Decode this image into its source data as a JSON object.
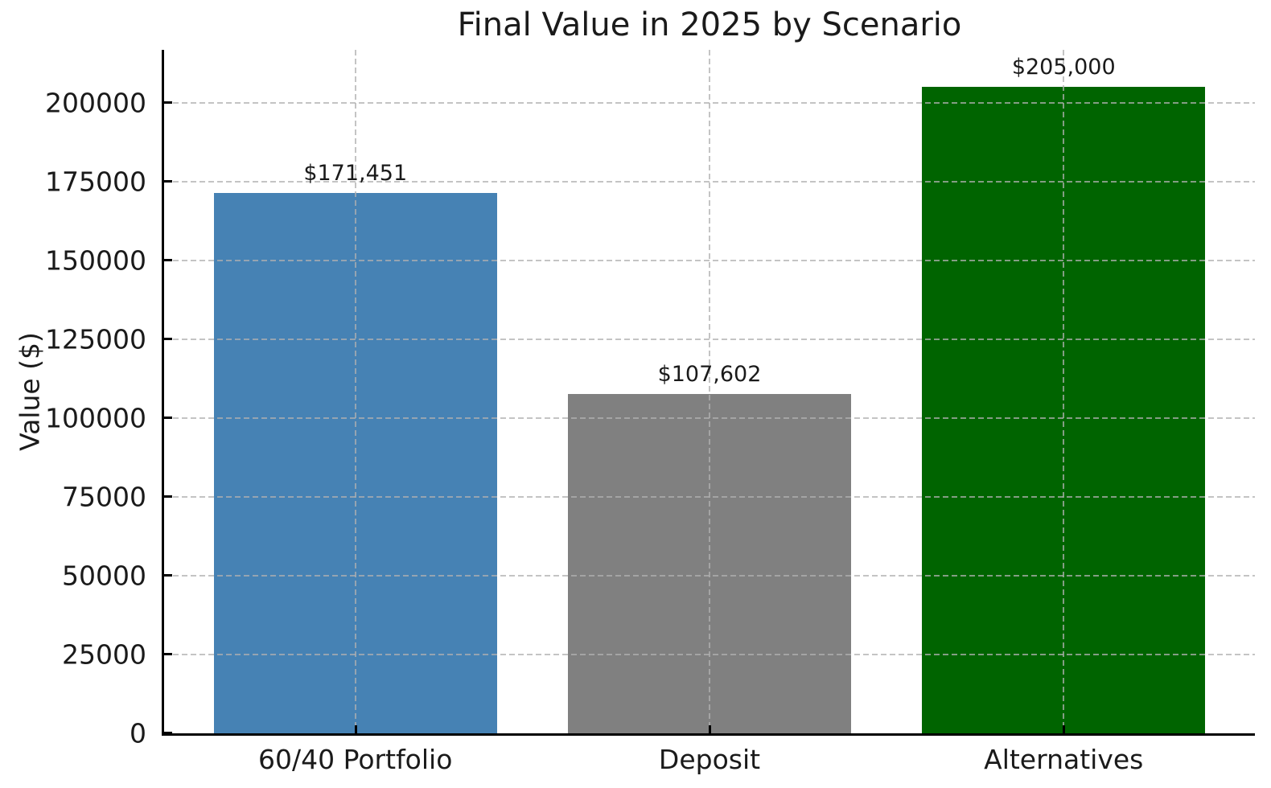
{
  "chart_data": {
    "type": "bar",
    "title": "Final Value in 2025 by Scenario",
    "xlabel": "",
    "ylabel": "Value ($)",
    "categories": [
      "60/40 Portfolio",
      "Deposit",
      "Alternatives"
    ],
    "values": [
      171451,
      107602,
      205000
    ],
    "value_labels": [
      "$171,451",
      "$107,602",
      "$205,000"
    ],
    "bar_colors": [
      "#4682b4",
      "#808080",
      "#006400"
    ],
    "ylim": [
      0,
      216837
    ],
    "yticks": [
      0,
      25000,
      50000,
      75000,
      100000,
      125000,
      150000,
      175000,
      200000
    ],
    "ytick_labels": [
      "0",
      "25000",
      "50000",
      "75000",
      "100000",
      "125000",
      "150000",
      "175000",
      "200000"
    ],
    "bar_width_fraction": 0.8,
    "grid": true,
    "grid_linestyle": "dashed",
    "legend_position": "none",
    "colors": {
      "background": "#ffffff",
      "grid": "#b0b0b0",
      "grid_opacity": 0.75,
      "axis": "#000000",
      "text": "#1a1a1a"
    }
  }
}
